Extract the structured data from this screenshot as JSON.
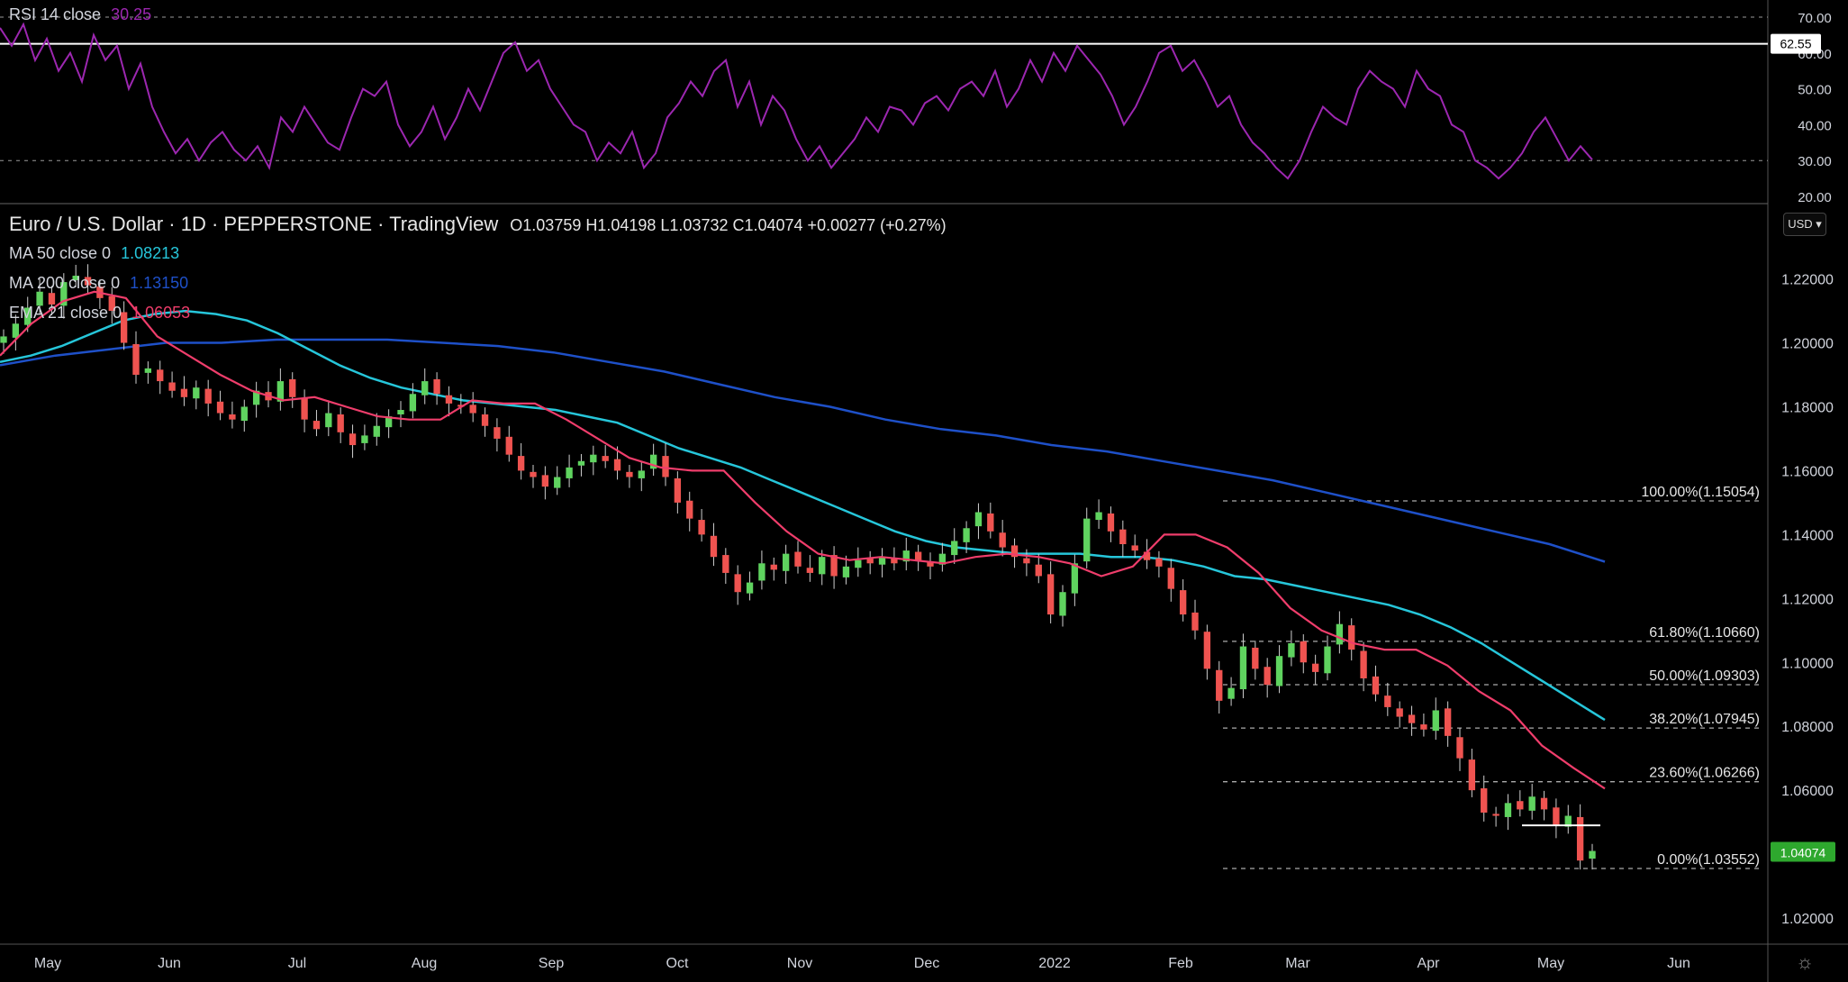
{
  "colors": {
    "background": "#000000",
    "up_candle": "#26a69a",
    "up_candle_fill": "#5fd35f",
    "down_candle": "#ef5350",
    "ma50": "#26c6da",
    "ma200": "#1e50c8",
    "ema21": "#ef3d6b",
    "rsi": "#9c27b0",
    "last_price_bg": "#2ea82e"
  },
  "header": {
    "symbol": "Euro / U.S. Dollar · 1D · PEPPERSTONE · TradingView",
    "ohlc": "O1.03759  H1.04198  L1.03732  C1.04074  +0.00277 (+0.27%)",
    "currency_button": "USD"
  },
  "indicators": {
    "ma50": {
      "label": "MA 50 close 0",
      "value": "1.08213"
    },
    "ma200": {
      "label": "MA 200 close 0",
      "value": "1.13150"
    },
    "ema21": {
      "label": "EMA 21 close 0",
      "value": "1.06053"
    },
    "rsi": {
      "label": "RSI 14 close",
      "value": "30.25"
    }
  },
  "chart_data": [
    {
      "type": "line",
      "title": "RSI 14 close",
      "ylim": [
        18,
        72
      ],
      "ticks": [
        "70.00",
        "60.00",
        "50.00",
        "40.00",
        "30.00",
        "20.00"
      ],
      "bands": [
        70,
        30
      ],
      "horizontal_line": {
        "value": 62.55,
        "label": "62.55"
      },
      "series": [
        {
          "name": "RSI 14 close",
          "values": [
            67,
            62,
            68,
            58,
            64,
            55,
            60,
            52,
            65,
            58,
            62,
            50,
            57,
            45,
            38,
            32,
            36,
            30,
            35,
            38,
            33,
            30,
            34,
            28,
            42,
            38,
            45,
            40,
            35,
            33,
            42,
            50,
            48,
            52,
            40,
            34,
            38,
            45,
            36,
            42,
            50,
            44,
            52,
            60,
            63,
            55,
            58,
            50,
            45,
            40,
            38,
            30,
            35,
            32,
            38,
            28,
            32,
            42,
            46,
            52,
            48,
            55,
            58,
            45,
            52,
            40,
            48,
            44,
            36,
            30,
            34,
            28,
            32,
            36,
            42,
            38,
            45,
            44,
            40,
            46,
            48,
            44,
            50,
            52,
            48,
            55,
            45,
            50,
            58,
            52,
            60,
            55,
            62,
            58,
            54,
            48,
            40,
            45,
            52,
            60,
            62,
            55,
            58,
            52,
            45,
            48,
            40,
            35,
            32,
            28,
            25,
            30,
            38,
            45,
            42,
            40,
            50,
            55,
            52,
            50,
            45,
            55,
            50,
            48,
            40,
            38,
            30,
            28,
            25,
            28,
            32,
            38,
            42,
            36,
            30,
            34,
            30.25
          ]
        }
      ]
    },
    {
      "type": "candlestick",
      "title": "Euro / U.S. Dollar · 1D · PEPPERSTONE · TradingView",
      "ylim": [
        1.0155,
        1.2455
      ],
      "y_ticks": [
        "1.22000",
        "1.20000",
        "1.18000",
        "1.16000",
        "1.14000",
        "1.12000",
        "1.10000",
        "1.08000",
        "1.06000",
        "1.04000",
        "1.02000"
      ],
      "x_ticks": [
        "May",
        "Jun",
        "Jul",
        "Aug",
        "Sep",
        "Oct",
        "Nov",
        "Dec",
        "2022",
        "Feb",
        "Mar",
        "Apr",
        "May",
        "Jun"
      ],
      "close": [
        1.202,
        1.206,
        1.211,
        1.216,
        1.212,
        1.219,
        1.221,
        1.218,
        1.214,
        1.21,
        1.2,
        1.19,
        1.192,
        1.188,
        1.185,
        1.183,
        1.186,
        1.181,
        1.178,
        1.176,
        1.18,
        1.185,
        1.182,
        1.188,
        1.183,
        1.176,
        1.173,
        1.178,
        1.172,
        1.168,
        1.171,
        1.174,
        1.177,
        1.179,
        1.184,
        1.188,
        1.184,
        1.181,
        1.18,
        1.178,
        1.174,
        1.17,
        1.165,
        1.16,
        1.158,
        1.155,
        1.158,
        1.161,
        1.163,
        1.165,
        1.163,
        1.16,
        1.158,
        1.16,
        1.165,
        1.158,
        1.15,
        1.145,
        1.14,
        1.133,
        1.128,
        1.122,
        1.125,
        1.131,
        1.129,
        1.134,
        1.13,
        1.128,
        1.133,
        1.127,
        1.13,
        1.132,
        1.131,
        1.133,
        1.131,
        1.135,
        1.132,
        1.13,
        1.134,
        1.138,
        1.142,
        1.147,
        1.141,
        1.136,
        1.133,
        1.131,
        1.127,
        1.115,
        1.122,
        1.131,
        1.145,
        1.147,
        1.141,
        1.137,
        1.135,
        1.132,
        1.13,
        1.123,
        1.115,
        1.11,
        1.098,
        1.088,
        1.092,
        1.105,
        1.098,
        1.093,
        1.102,
        1.106,
        1.1,
        1.097,
        1.105,
        1.112,
        1.104,
        1.095,
        1.09,
        1.086,
        1.083,
        1.081,
        1.079,
        1.085,
        1.077,
        1.07,
        1.06,
        1.053,
        1.052,
        1.056,
        1.054,
        1.058,
        1.054,
        1.049,
        1.052,
        1.038,
        1.041
      ],
      "series": [
        {
          "name": "MA 50 close 0",
          "values": [
            1.194,
            1.196,
            1.199,
            1.203,
            1.207,
            1.209,
            1.21,
            1.209,
            1.207,
            1.203,
            1.198,
            1.193,
            1.189,
            1.186,
            1.184,
            1.182,
            1.181,
            1.18,
            1.179,
            1.177,
            1.175,
            1.171,
            1.167,
            1.164,
            1.161,
            1.157,
            1.153,
            1.149,
            1.145,
            1.141,
            1.138,
            1.136,
            1.135,
            1.134,
            1.134,
            1.134,
            1.133,
            1.133,
            1.132,
            1.13,
            1.127,
            1.126,
            1.124,
            1.122,
            1.12,
            1.118,
            1.115,
            1.111,
            1.106,
            1.1,
            1.094,
            1.088,
            1.082
          ]
        },
        {
          "name": "MA 200 close 0",
          "values": [
            1.193,
            1.196,
            1.198,
            1.2,
            1.2,
            1.201,
            1.201,
            1.201,
            1.2,
            1.199,
            1.197,
            1.194,
            1.191,
            1.187,
            1.183,
            1.18,
            1.176,
            1.173,
            1.171,
            1.168,
            1.166,
            1.163,
            1.16,
            1.157,
            1.153,
            1.149,
            1.145,
            1.141,
            1.137,
            1.1315
          ]
        },
        {
          "name": "EMA 21 close 0",
          "values": [
            1.196,
            1.206,
            1.213,
            1.216,
            1.214,
            1.202,
            1.196,
            1.19,
            1.185,
            1.182,
            1.183,
            1.18,
            1.177,
            1.176,
            1.176,
            1.182,
            1.181,
            1.181,
            1.176,
            1.17,
            1.164,
            1.161,
            1.16,
            1.16,
            1.15,
            1.141,
            1.134,
            1.132,
            1.133,
            1.132,
            1.131,
            1.133,
            1.134,
            1.133,
            1.131,
            1.127,
            1.13,
            1.14,
            1.14,
            1.136,
            1.128,
            1.117,
            1.11,
            1.106,
            1.104,
            1.104,
            1.099,
            1.091,
            1.085,
            1.074,
            1.067,
            1.06053
          ]
        }
      ],
      "fibonacci": [
        {
          "label": "100.00%(1.15054)",
          "value": 1.15054
        },
        {
          "label": "61.80%(1.10660)",
          "value": 1.1066
        },
        {
          "label": "50.00%(1.09303)",
          "value": 1.09303
        },
        {
          "label": "38.20%(1.07945)",
          "value": 1.07945
        },
        {
          "label": "23.60%(1.06266)",
          "value": 1.06266
        },
        {
          "label": "0.00%(1.03552)",
          "value": 1.03552
        }
      ],
      "support_line": 1.049,
      "last_price": {
        "value": 1.04074,
        "label": "1.04074"
      }
    }
  ]
}
